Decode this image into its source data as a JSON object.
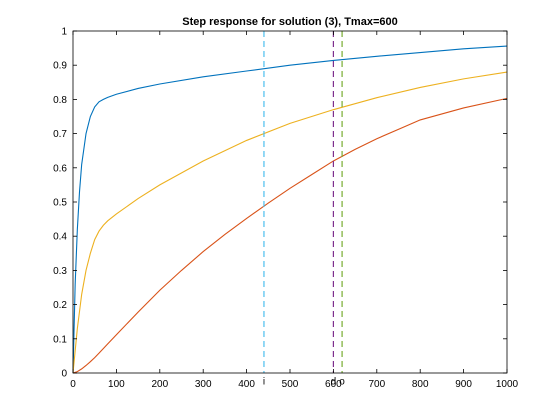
{
  "chart_data": {
    "type": "line",
    "title": "Step response for solution (3), Tmax=600",
    "xlabel": "",
    "ylabel": "",
    "xlim": [
      0,
      1000
    ],
    "ylim": [
      0,
      1
    ],
    "xticks": [
      0,
      100,
      200,
      300,
      400,
      500,
      600,
      700,
      800,
      900,
      1000
    ],
    "yticks": [
      0,
      0.1,
      0.2,
      0.3,
      0.4,
      0.5,
      0.6,
      0.7,
      0.8,
      0.9,
      1
    ],
    "grid": false,
    "legend": "none",
    "series": [
      {
        "color": "#0072BD",
        "x": [
          0,
          5,
          10,
          15,
          20,
          30,
          40,
          50,
          60,
          70,
          80,
          100,
          150,
          200,
          300,
          400,
          500,
          600,
          700,
          800,
          900,
          1000
        ],
        "y": [
          0,
          0.26,
          0.42,
          0.53,
          0.61,
          0.7,
          0.75,
          0.778,
          0.793,
          0.8,
          0.806,
          0.815,
          0.832,
          0.845,
          0.866,
          0.883,
          0.9,
          0.914,
          0.926,
          0.937,
          0.948,
          0.956
        ]
      },
      {
        "color": "#EDB120",
        "x": [
          0,
          10,
          20,
          30,
          40,
          50,
          60,
          70,
          80,
          100,
          150,
          200,
          300,
          400,
          500,
          600,
          700,
          800,
          900,
          1000
        ],
        "y": [
          0,
          0.13,
          0.23,
          0.3,
          0.35,
          0.39,
          0.415,
          0.432,
          0.445,
          0.465,
          0.51,
          0.55,
          0.62,
          0.68,
          0.73,
          0.77,
          0.805,
          0.835,
          0.86,
          0.88
        ]
      },
      {
        "color": "#D95319",
        "x": [
          0,
          10,
          20,
          30,
          40,
          50,
          60,
          80,
          100,
          150,
          200,
          250,
          300,
          350,
          400,
          450,
          500,
          550,
          600,
          650,
          700,
          800,
          900,
          1000
        ],
        "y": [
          0,
          0.004,
          0.012,
          0.022,
          0.033,
          0.045,
          0.058,
          0.085,
          0.112,
          0.178,
          0.242,
          0.3,
          0.355,
          0.405,
          0.452,
          0.497,
          0.54,
          0.58,
          0.62,
          0.654,
          0.685,
          0.74,
          0.775,
          0.803
        ]
      }
    ],
    "vlines": [
      {
        "x": 440,
        "color": "#4DBEEE",
        "style": "dashed",
        "label": "i"
      },
      {
        "x": 600,
        "color": "#7E2F8E",
        "style": "dashed",
        "label": "d"
      },
      {
        "x": 620,
        "color": "#77AC30",
        "style": "dashed",
        "label": "o"
      }
    ]
  }
}
